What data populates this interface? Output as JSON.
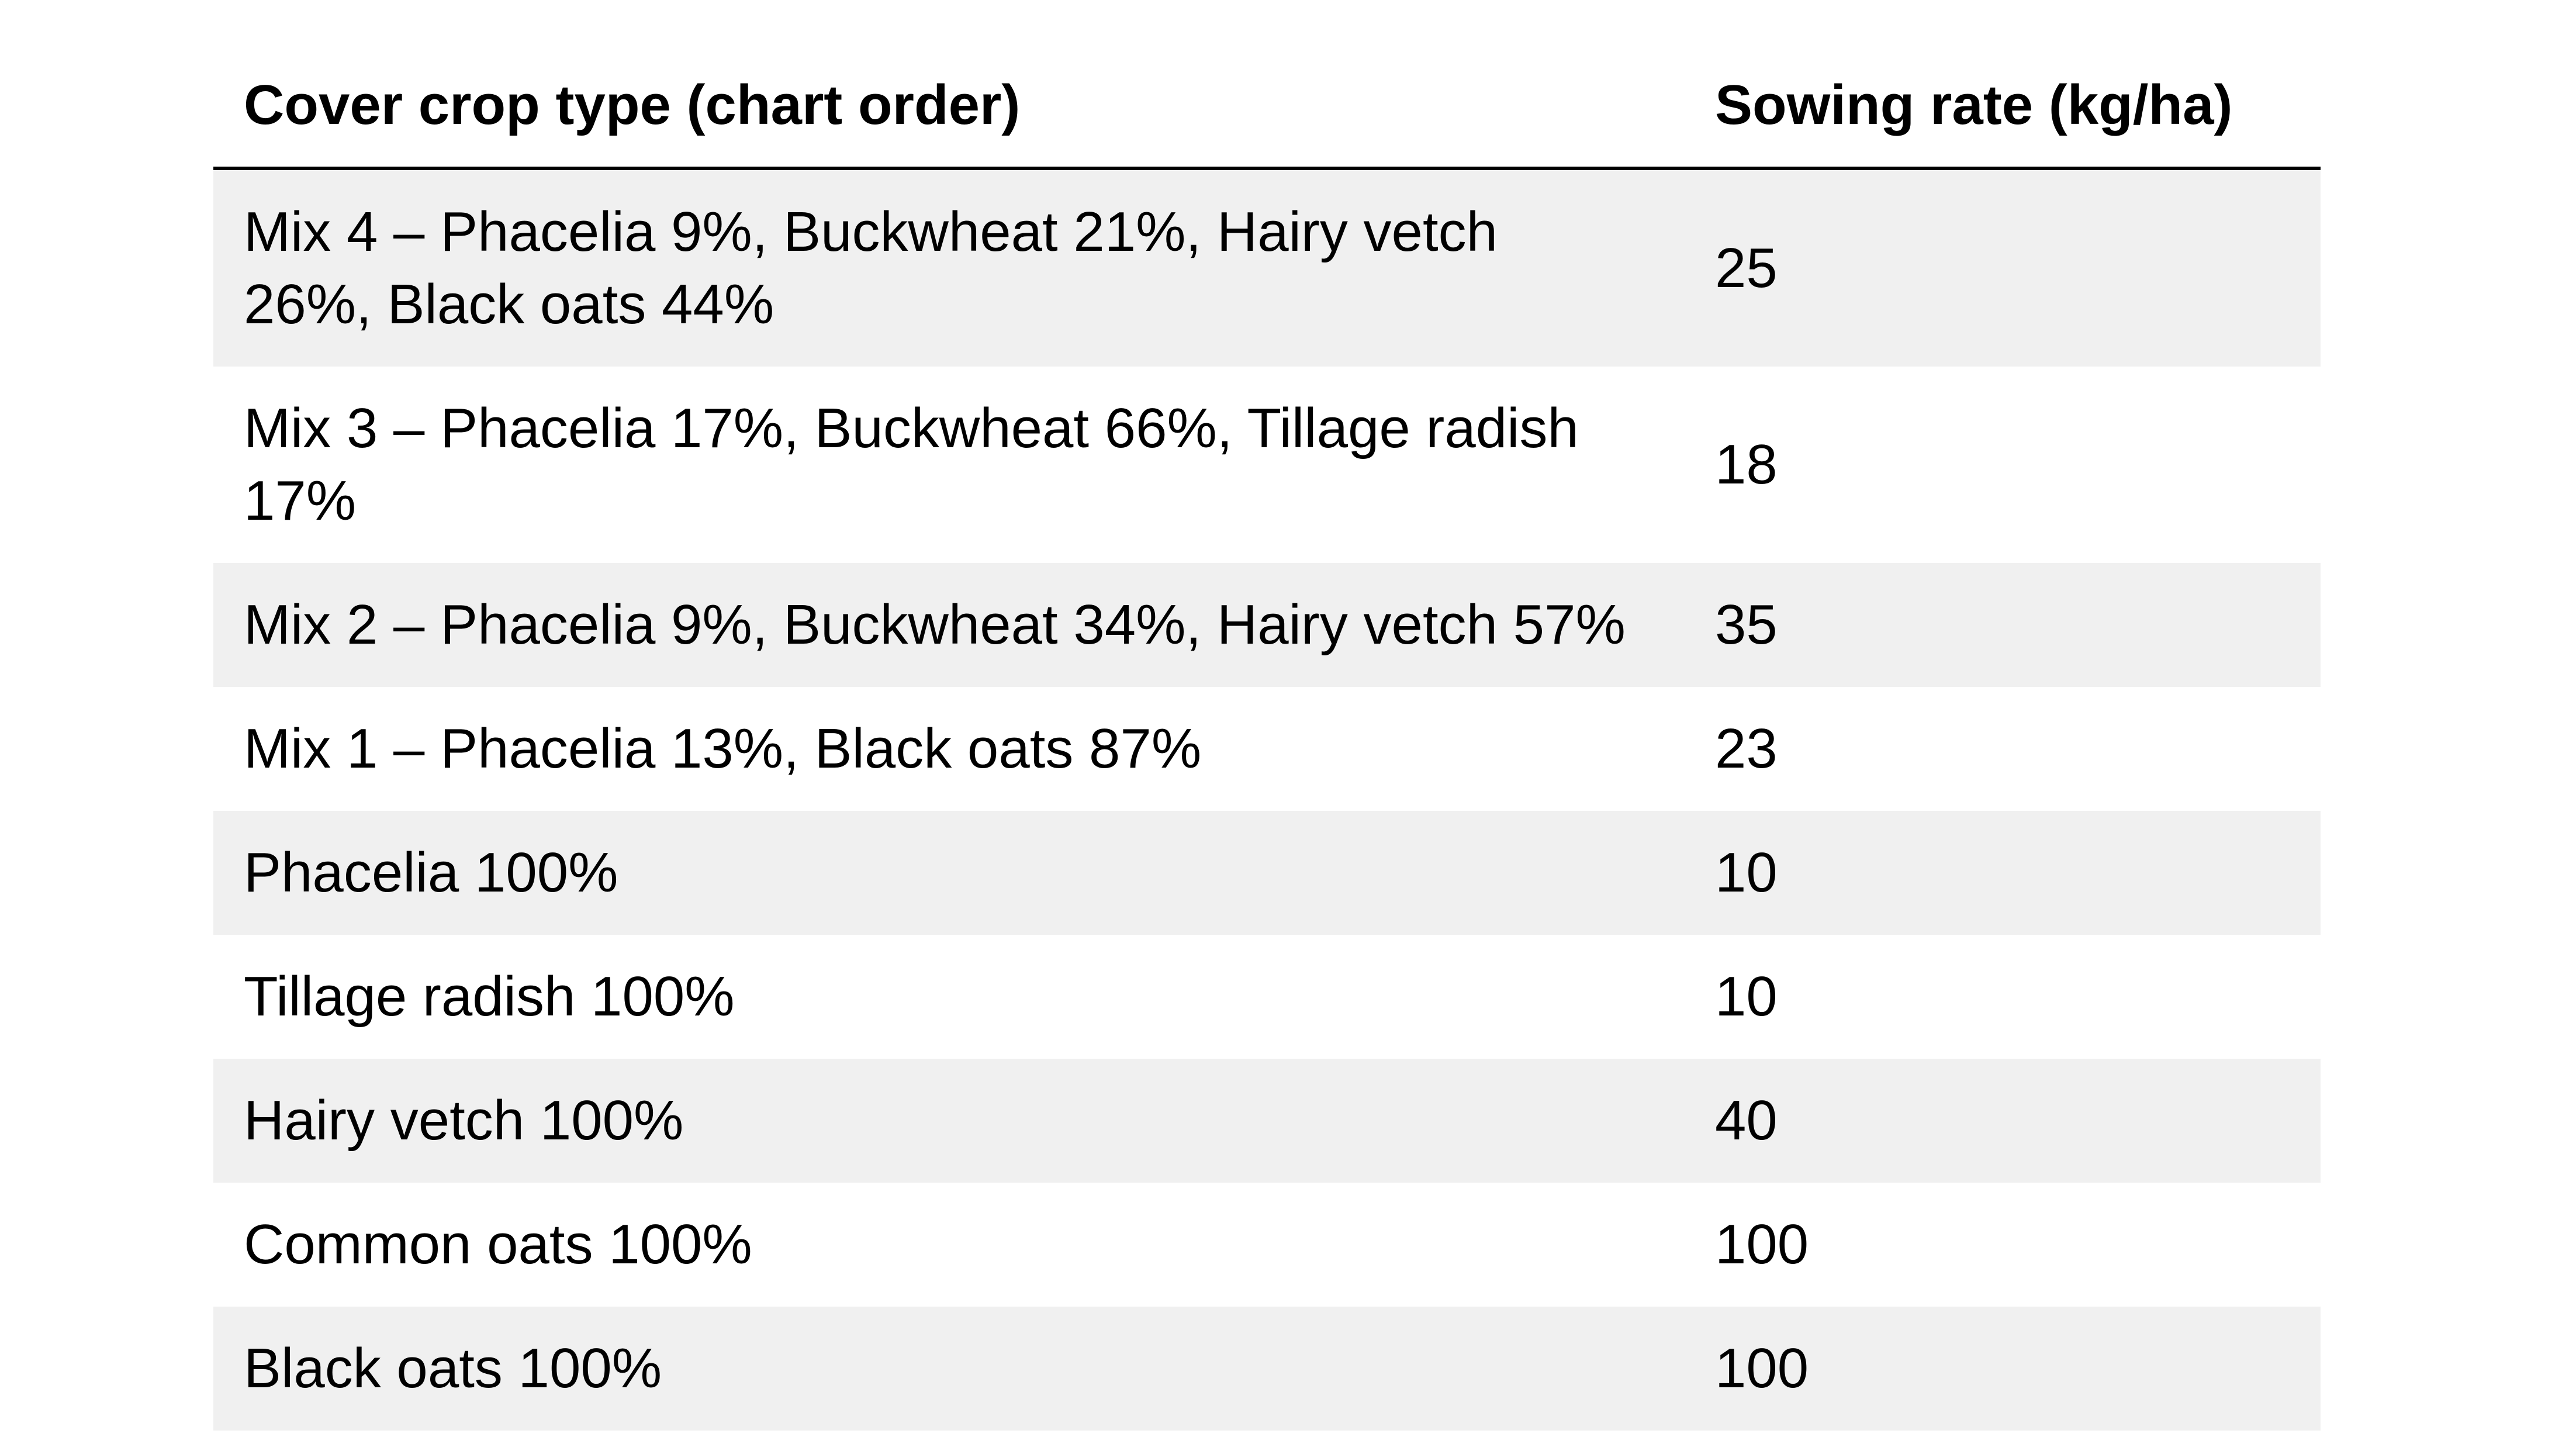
{
  "table": {
    "header": {
      "crop_label": "Cover crop type (chart order)",
      "rate_label": "Sowing rate (kg/ha)"
    },
    "rows": [
      {
        "crop": "Mix 4 – Phacelia 9%, Buckwheat 21%, Hairy vetch 26%, Black oats 44%",
        "rate": "25"
      },
      {
        "crop": "Mix 3 – Phacelia 17%, Buckwheat 66%, Tillage radish 17%",
        "rate": "18"
      },
      {
        "crop": "Mix 2 – Phacelia 9%, Buckwheat 34%, Hairy vetch 57%",
        "rate": "35"
      },
      {
        "crop": "Mix 1 – Phacelia 13%, Black oats 87%",
        "rate": "23"
      },
      {
        "crop": "Phacelia 100%",
        "rate": "10"
      },
      {
        "crop": "Tillage radish 100%",
        "rate": "10"
      },
      {
        "crop": "Hairy vetch 100%",
        "rate": "40"
      },
      {
        "crop": "Common oats 100%",
        "rate": "100"
      },
      {
        "crop": "Black oats 100%",
        "rate": "100"
      }
    ],
    "style": {
      "stripe_color": "#f0f0f0",
      "rule_color": "#000000",
      "text_color": "#000000",
      "background_color": "#ffffff",
      "stripe_pattern": "odd-rows-gray-starting-with-first"
    }
  },
  "chart_data": {
    "type": "table",
    "columns": [
      "Cover crop type (chart order)",
      "Sowing rate (kg/ha)"
    ],
    "rows": [
      [
        "Mix 4 – Phacelia 9%, Buckwheat 21%, Hairy vetch 26%, Black oats 44%",
        25
      ],
      [
        "Mix 3 – Phacelia 17%, Buckwheat 66%, Tillage radish 17%",
        18
      ],
      [
        "Mix 2 – Phacelia 9%, Buckwheat 34%, Hairy vetch 57%",
        35
      ],
      [
        "Mix 1 – Phacelia 13%, Black oats 87%",
        23
      ],
      [
        "Phacelia 100%",
        10
      ],
      [
        "Tillage radish 100%",
        10
      ],
      [
        "Hairy vetch 100%",
        40
      ],
      [
        "Common oats 100%",
        100
      ],
      [
        "Black oats 100%",
        100
      ]
    ]
  }
}
